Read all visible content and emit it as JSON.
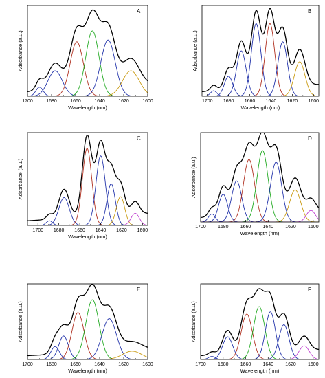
{
  "chart_data": [
    {
      "type": "line",
      "panel_label": "A",
      "xlabel": "Wavelength (nm)",
      "ylabel": "Adsorbance (a.u.)",
      "xlim": [
        1700,
        1600
      ],
      "x_ticks": [
        1700,
        1680,
        1660,
        1640,
        1620,
        1600
      ],
      "y_ticks_shown": false,
      "envelope": {
        "color": "#000000"
      },
      "components": [
        {
          "center": 1690,
          "height": 0.1,
          "width": 3,
          "color": "#2233aa"
        },
        {
          "center": 1677,
          "height": 0.28,
          "width": 6,
          "color": "#2233aa"
        },
        {
          "center": 1659,
          "height": 0.6,
          "width": 5.5,
          "color": "#b03020"
        },
        {
          "center": 1646,
          "height": 0.72,
          "width": 5.5,
          "color": "#22aa22"
        },
        {
          "center": 1633,
          "height": 0.62,
          "width": 6,
          "color": "#2233aa"
        },
        {
          "center": 1614,
          "height": 0.28,
          "width": 7,
          "color": "#c99a10"
        }
      ]
    },
    {
      "type": "line",
      "panel_label": "B",
      "xlabel": "Wavelength (nm)",
      "ylabel": "Adsorbance (a.u.)",
      "xlim": [
        1705,
        1595
      ],
      "x_ticks": [
        1700,
        1680,
        1660,
        1640,
        1620,
        1600
      ],
      "y_ticks_shown": false,
      "envelope": {
        "color": "#000000"
      },
      "components": [
        {
          "center": 1694,
          "height": 0.06,
          "width": 3,
          "color": "#2233aa"
        },
        {
          "center": 1680,
          "height": 0.22,
          "width": 4,
          "color": "#2233aa"
        },
        {
          "center": 1668,
          "height": 0.5,
          "width": 4.5,
          "color": "#2233aa"
        },
        {
          "center": 1654,
          "height": 0.8,
          "width": 4.5,
          "color": "#2233aa"
        },
        {
          "center": 1641,
          "height": 0.8,
          "width": 4.5,
          "color": "#b03020"
        },
        {
          "center": 1629,
          "height": 0.6,
          "width": 4.5,
          "color": "#2233aa"
        },
        {
          "center": 1613,
          "height": 0.38,
          "width": 5,
          "color": "#c99a10"
        }
      ]
    },
    {
      "type": "line",
      "panel_label": "C",
      "xlabel": "Wavelength (nm)",
      "ylabel": "Adsorbance (a.u.)",
      "xlim": [
        1710,
        1595
      ],
      "x_ticks": [
        1700,
        1680,
        1660,
        1640,
        1620,
        1600
      ],
      "y_ticks_shown": false,
      "envelope": {
        "color": "#000000"
      },
      "components": [
        {
          "center": 1689,
          "height": 0.05,
          "width": 3,
          "color": "#2233aa"
        },
        {
          "center": 1675,
          "height": 0.3,
          "width": 5,
          "color": "#2233aa"
        },
        {
          "center": 1653,
          "height": 0.83,
          "width": 4.5,
          "color": "#b03020"
        },
        {
          "center": 1640,
          "height": 0.75,
          "width": 4.5,
          "color": "#2233aa"
        },
        {
          "center": 1630,
          "height": 0.45,
          "width": 4,
          "color": "#2233aa"
        },
        {
          "center": 1621,
          "height": 0.31,
          "width": 4,
          "color": "#c99a10"
        },
        {
          "center": 1607,
          "height": 0.13,
          "width": 4,
          "color": "#c040d0"
        }
      ]
    },
    {
      "type": "line",
      "panel_label": "D",
      "xlabel": "Wavelength (nm)",
      "ylabel": "Adsorbance (a.u.)",
      "xlim": [
        1700,
        1595
      ],
      "x_ticks": [
        1700,
        1680,
        1660,
        1640,
        1620,
        1600
      ],
      "y_ticks_shown": false,
      "envelope": {
        "color": "#000000"
      },
      "components": [
        {
          "center": 1690,
          "height": 0.09,
          "width": 3,
          "color": "#2233aa"
        },
        {
          "center": 1680,
          "height": 0.31,
          "width": 4,
          "color": "#2233aa"
        },
        {
          "center": 1668,
          "height": 0.46,
          "width": 4.5,
          "color": "#2233aa"
        },
        {
          "center": 1657,
          "height": 0.7,
          "width": 5,
          "color": "#b03020"
        },
        {
          "center": 1645,
          "height": 0.8,
          "width": 5,
          "color": "#22aa22"
        },
        {
          "center": 1633,
          "height": 0.67,
          "width": 5,
          "color": "#2233aa"
        },
        {
          "center": 1616,
          "height": 0.36,
          "width": 5,
          "color": "#c99a10"
        },
        {
          "center": 1602,
          "height": 0.13,
          "width": 4,
          "color": "#c040d0"
        }
      ]
    },
    {
      "type": "line",
      "panel_label": "E",
      "xlabel": "Wavelength (nm)",
      "ylabel": "Adsorbance (a.u.)",
      "xlim": [
        1700,
        1600
      ],
      "x_ticks": [
        1700,
        1680,
        1660,
        1640,
        1620,
        1600
      ],
      "y_ticks_shown": false,
      "envelope": {
        "color": "#000000"
      },
      "components": [
        {
          "center": 1677,
          "height": 0.17,
          "width": 3.5,
          "color": "#2233aa"
        },
        {
          "center": 1670,
          "height": 0.31,
          "width": 4,
          "color": "#2233aa"
        },
        {
          "center": 1658,
          "height": 0.62,
          "width": 5,
          "color": "#b03020"
        },
        {
          "center": 1646,
          "height": 0.79,
          "width": 5.5,
          "color": "#22aa22"
        },
        {
          "center": 1632,
          "height": 0.54,
          "width": 6,
          "color": "#2233aa"
        },
        {
          "center": 1613,
          "height": 0.11,
          "width": 8,
          "color": "#c99a10"
        }
      ]
    },
    {
      "type": "line",
      "panel_label": "F",
      "xlabel": "Wavelength (nm)",
      "ylabel": "Adsorbance (a.u.)",
      "xlim": [
        1700,
        1595
      ],
      "x_ticks": [
        1700,
        1680,
        1660,
        1640,
        1620,
        1600
      ],
      "y_ticks_shown": false,
      "envelope": {
        "color": "#000000"
      },
      "components": [
        {
          "center": 1690,
          "height": 0.04,
          "width": 3,
          "color": "#2233aa"
        },
        {
          "center": 1676,
          "height": 0.3,
          "width": 4.5,
          "color": "#2233aa"
        },
        {
          "center": 1659,
          "height": 0.6,
          "width": 5,
          "color": "#b03020"
        },
        {
          "center": 1648,
          "height": 0.7,
          "width": 5,
          "color": "#22aa22"
        },
        {
          "center": 1638,
          "height": 0.63,
          "width": 4.5,
          "color": "#2233aa"
        },
        {
          "center": 1626,
          "height": 0.46,
          "width": 4.5,
          "color": "#2233aa"
        },
        {
          "center": 1608,
          "height": 0.18,
          "width": 4.5,
          "color": "#c040d0"
        }
      ]
    }
  ]
}
